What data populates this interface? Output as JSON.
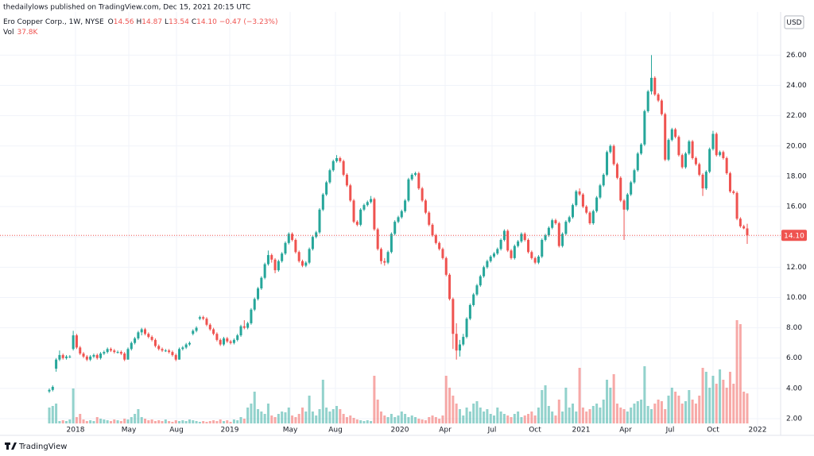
{
  "chart_data": {
    "type": "candlestick",
    "publisher_line": "thedailylows published on TradingView.com, Dec 15, 2021 20:15 UTC",
    "symbol": "Ero Copper Corp., 1W, NYSE",
    "ohlc_legend": [
      {
        "label": "O",
        "value": "14.56"
      },
      {
        "label": "H",
        "value": "14.87"
      },
      {
        "label": "L",
        "value": "13.54"
      },
      {
        "label": "C",
        "value": "14.10"
      }
    ],
    "change": "−0.47 (−3.23%)",
    "volume_legend": {
      "label": "Vol",
      "value": "37.8K"
    },
    "currency": "USD",
    "brand": "TradingView",
    "last_price": {
      "value": 14.1,
      "label": "14.10"
    },
    "up_color": "#26a69a",
    "down_color": "#ef5350",
    "grid": true,
    "ylim": [
      1.32,
      27.8
    ],
    "yticks": [
      {
        "value": 2,
        "label": "2.00"
      },
      {
        "value": 4,
        "label": "4.00"
      },
      {
        "value": 6,
        "label": "6.00"
      },
      {
        "value": 8,
        "label": "8.00"
      },
      {
        "value": 10,
        "label": "10.00"
      },
      {
        "value": 12,
        "label": "12.00"
      },
      {
        "value": 14,
        "label": "14.00"
      },
      {
        "value": 16,
        "label": "16.00"
      },
      {
        "value": 18,
        "label": "18.00"
      },
      {
        "value": 20,
        "label": "20.00"
      },
      {
        "value": 22,
        "label": "22.00"
      },
      {
        "value": 24,
        "label": "24.00"
      },
      {
        "value": 26,
        "label": "26.00"
      }
    ],
    "xlabels": [
      "2018",
      "May",
      "Aug",
      "2019",
      "May",
      "Aug",
      "2020",
      "Apr",
      "Jul",
      "Oct",
      "2021",
      "Apr",
      "Jul",
      "Oct",
      "2022"
    ],
    "candles": [
      [
        3.8,
        4.0,
        3.7,
        3.9
      ],
      [
        3.9,
        4.2,
        3.8,
        4.1
      ],
      [
        5.3,
        6.0,
        5.1,
        5.9
      ],
      [
        5.9,
        6.5,
        5.8,
        6.2
      ],
      [
        6.2,
        6.3,
        5.9,
        6.0
      ],
      [
        6.0,
        6.2,
        5.9,
        6.1
      ],
      [
        6.1,
        6.2,
        6.0,
        6.1
      ],
      [
        6.6,
        7.8,
        6.5,
        7.5
      ],
      [
        7.5,
        7.6,
        6.6,
        6.7
      ],
      [
        6.7,
        6.8,
        6.2,
        6.3
      ],
      [
        6.3,
        6.4,
        6.0,
        6.1
      ],
      [
        6.1,
        6.2,
        5.8,
        5.9
      ],
      [
        5.9,
        6.2,
        5.8,
        6.1
      ],
      [
        6.1,
        6.3,
        6.0,
        6.2
      ],
      [
        6.2,
        6.3,
        5.9,
        6.0
      ],
      [
        6.0,
        6.4,
        5.9,
        6.3
      ],
      [
        6.3,
        6.5,
        6.2,
        6.4
      ],
      [
        6.4,
        6.7,
        6.3,
        6.6
      ],
      [
        6.6,
        6.7,
        6.4,
        6.5
      ],
      [
        6.5,
        6.6,
        6.3,
        6.4
      ],
      [
        6.4,
        6.5,
        6.3,
        6.4
      ],
      [
        6.4,
        6.5,
        6.2,
        6.3
      ],
      [
        6.3,
        6.4,
        5.8,
        5.9
      ],
      [
        5.9,
        6.7,
        5.9,
        6.6
      ],
      [
        6.6,
        7.1,
        6.5,
        7.0
      ],
      [
        7.0,
        7.4,
        6.9,
        7.3
      ],
      [
        7.3,
        7.8,
        7.2,
        7.7
      ],
      [
        7.7,
        8.0,
        7.5,
        7.9
      ],
      [
        7.9,
        8.0,
        7.5,
        7.6
      ],
      [
        7.6,
        7.7,
        7.3,
        7.4
      ],
      [
        7.4,
        7.5,
        7.1,
        7.2
      ],
      [
        7.2,
        7.3,
        6.7,
        6.8
      ],
      [
        6.8,
        6.9,
        6.5,
        6.6
      ],
      [
        6.6,
        6.7,
        6.4,
        6.5
      ],
      [
        6.5,
        6.6,
        6.4,
        6.5
      ],
      [
        6.5,
        6.6,
        6.3,
        6.4
      ],
      [
        6.4,
        6.5,
        6.1,
        6.2
      ],
      [
        6.2,
        6.3,
        5.8,
        5.9
      ],
      [
        5.9,
        6.7,
        5.9,
        6.6
      ],
      [
        6.6,
        6.8,
        6.5,
        6.7
      ],
      [
        6.7,
        7.0,
        6.6,
        6.9
      ],
      [
        6.9,
        7.1,
        6.8,
        7.0
      ],
      [
        7.6,
        7.9,
        7.5,
        7.8
      ],
      [
        7.8,
        8.1,
        7.7,
        8.0
      ],
      [
        8.6,
        8.8,
        8.5,
        8.7
      ],
      [
        8.7,
        8.8,
        8.5,
        8.6
      ],
      [
        8.6,
        8.7,
        8.1,
        8.2
      ],
      [
        8.2,
        8.3,
        7.8,
        7.9
      ],
      [
        7.9,
        8.0,
        7.5,
        7.6
      ],
      [
        7.6,
        7.7,
        7.1,
        7.2
      ],
      [
        7.2,
        7.3,
        6.8,
        6.9
      ],
      [
        6.9,
        7.4,
        6.8,
        7.3
      ],
      [
        7.3,
        7.4,
        7.0,
        7.1
      ],
      [
        7.1,
        7.2,
        6.9,
        7.0
      ],
      [
        7.0,
        7.3,
        6.9,
        7.2
      ],
      [
        7.2,
        7.6,
        7.1,
        7.5
      ],
      [
        7.5,
        8.2,
        7.4,
        8.1
      ],
      [
        8.1,
        8.5,
        7.9,
        8.0
      ],
      [
        8.0,
        8.4,
        7.9,
        8.3
      ],
      [
        8.3,
        9.3,
        8.2,
        9.2
      ],
      [
        9.2,
        10.0,
        9.1,
        9.9
      ],
      [
        9.9,
        10.7,
        9.8,
        10.6
      ],
      [
        10.6,
        11.4,
        10.5,
        11.3
      ],
      [
        11.3,
        12.3,
        11.2,
        12.2
      ],
      [
        12.2,
        13.1,
        12.1,
        12.8
      ],
      [
        12.8,
        12.9,
        12.3,
        12.5
      ],
      [
        12.5,
        12.6,
        11.6,
        11.8
      ],
      [
        11.8,
        12.5,
        11.7,
        12.4
      ],
      [
        12.4,
        13.0,
        12.3,
        12.9
      ],
      [
        12.9,
        13.7,
        12.8,
        13.6
      ],
      [
        13.6,
        14.3,
        13.5,
        14.2
      ],
      [
        14.2,
        14.3,
        13.7,
        13.8
      ],
      [
        13.8,
        13.9,
        12.9,
        13.0
      ],
      [
        13.0,
        13.1,
        12.3,
        12.4
      ],
      [
        12.4,
        12.5,
        12.0,
        12.1
      ],
      [
        12.1,
        12.4,
        12.0,
        12.3
      ],
      [
        12.3,
        13.3,
        12.2,
        13.2
      ],
      [
        13.2,
        14.1,
        13.1,
        14.0
      ],
      [
        14.0,
        14.4,
        13.9,
        14.3
      ],
      [
        14.3,
        15.9,
        14.2,
        15.8
      ],
      [
        15.8,
        16.9,
        15.7,
        16.8
      ],
      [
        16.8,
        17.7,
        16.7,
        17.6
      ],
      [
        17.6,
        18.5,
        17.5,
        18.4
      ],
      [
        18.4,
        19.1,
        18.3,
        19.0
      ],
      [
        19.0,
        19.4,
        18.9,
        19.2
      ],
      [
        19.2,
        19.3,
        18.9,
        19.0
      ],
      [
        19.0,
        19.1,
        18.0,
        18.1
      ],
      [
        18.1,
        18.2,
        17.3,
        17.4
      ],
      [
        17.4,
        17.5,
        16.3,
        16.4
      ],
      [
        16.4,
        16.5,
        14.9,
        15.0
      ],
      [
        15.0,
        15.1,
        14.7,
        14.8
      ],
      [
        14.8,
        15.9,
        14.7,
        15.8
      ],
      [
        15.8,
        16.2,
        15.7,
        16.1
      ],
      [
        16.1,
        16.4,
        16.0,
        16.3
      ],
      [
        16.3,
        16.7,
        16.2,
        16.5
      ],
      [
        16.5,
        16.6,
        14.4,
        14.5
      ],
      [
        14.5,
        14.6,
        13.1,
        13.2
      ],
      [
        13.2,
        13.3,
        12.2,
        12.4
      ],
      [
        12.4,
        12.6,
        12.1,
        12.3
      ],
      [
        12.3,
        13.1,
        12.2,
        13.0
      ],
      [
        13.0,
        14.3,
        12.9,
        14.2
      ],
      [
        14.2,
        15.1,
        14.1,
        15.0
      ],
      [
        15.0,
        15.4,
        14.9,
        15.3
      ],
      [
        15.3,
        15.8,
        15.2,
        15.7
      ],
      [
        15.7,
        16.5,
        15.6,
        16.4
      ],
      [
        16.4,
        17.9,
        16.3,
        17.8
      ],
      [
        17.8,
        18.2,
        17.7,
        18.1
      ],
      [
        18.1,
        18.3,
        18.0,
        18.2
      ],
      [
        18.2,
        18.3,
        17.1,
        17.2
      ],
      [
        17.2,
        17.3,
        16.3,
        16.4
      ],
      [
        16.4,
        16.5,
        15.5,
        15.6
      ],
      [
        15.6,
        15.7,
        14.7,
        14.8
      ],
      [
        14.8,
        14.9,
        14.0,
        14.1
      ],
      [
        14.1,
        14.2,
        13.5,
        13.6
      ],
      [
        13.6,
        13.7,
        13.1,
        13.2
      ],
      [
        13.2,
        13.3,
        12.5,
        12.6
      ],
      [
        12.6,
        12.7,
        11.4,
        11.5
      ],
      [
        11.5,
        11.6,
        9.8,
        9.9
      ],
      [
        9.9,
        10.0,
        6.6,
        7.6
      ],
      [
        7.6,
        8.3,
        5.9,
        6.5
      ],
      [
        6.5,
        7.2,
        6.1,
        6.9
      ],
      [
        6.9,
        7.6,
        6.8,
        7.4
      ],
      [
        7.4,
        8.7,
        7.3,
        8.6
      ],
      [
        8.6,
        9.6,
        8.5,
        9.5
      ],
      [
        9.5,
        10.3,
        9.4,
        10.2
      ],
      [
        10.2,
        10.9,
        10.1,
        10.8
      ],
      [
        10.8,
        11.5,
        10.7,
        11.4
      ],
      [
        11.4,
        12.1,
        11.3,
        12.0
      ],
      [
        12.0,
        12.5,
        11.9,
        12.4
      ],
      [
        12.4,
        12.8,
        12.3,
        12.7
      ],
      [
        12.7,
        13.0,
        12.6,
        12.9
      ],
      [
        12.9,
        13.3,
        12.8,
        13.2
      ],
      [
        13.2,
        13.9,
        13.1,
        13.8
      ],
      [
        13.8,
        14.5,
        13.7,
        14.4
      ],
      [
        14.4,
        14.5,
        13.0,
        13.1
      ],
      [
        13.1,
        13.2,
        12.5,
        12.6
      ],
      [
        12.6,
        13.5,
        12.5,
        13.4
      ],
      [
        13.4,
        13.8,
        13.3,
        13.7
      ],
      [
        13.7,
        14.3,
        13.6,
        14.2
      ],
      [
        14.2,
        14.3,
        13.7,
        13.8
      ],
      [
        13.8,
        13.9,
        12.9,
        13.0
      ],
      [
        13.0,
        13.1,
        12.5,
        12.6
      ],
      [
        12.6,
        12.7,
        12.2,
        12.3
      ],
      [
        12.3,
        12.8,
        12.2,
        12.7
      ],
      [
        12.7,
        13.9,
        12.6,
        13.8
      ],
      [
        13.8,
        14.2,
        13.7,
        14.1
      ],
      [
        14.1,
        14.7,
        14.0,
        14.6
      ],
      [
        14.6,
        15.2,
        14.5,
        15.1
      ],
      [
        15.1,
        15.2,
        14.8,
        14.9
      ],
      [
        14.9,
        15.0,
        13.3,
        13.4
      ],
      [
        13.4,
        14.3,
        13.3,
        14.2
      ],
      [
        14.2,
        15.1,
        14.1,
        15.0
      ],
      [
        15.0,
        15.4,
        14.9,
        15.3
      ],
      [
        15.3,
        16.2,
        15.2,
        16.1
      ],
      [
        16.1,
        17.1,
        16.0,
        17.0
      ],
      [
        17.0,
        17.2,
        16.7,
        16.8
      ],
      [
        16.8,
        16.9,
        15.9,
        16.0
      ],
      [
        16.0,
        16.1,
        15.5,
        15.6
      ],
      [
        15.6,
        15.7,
        14.8,
        14.9
      ],
      [
        14.9,
        15.8,
        14.8,
        15.7
      ],
      [
        15.7,
        16.7,
        15.6,
        16.6
      ],
      [
        16.6,
        17.5,
        16.5,
        17.4
      ],
      [
        17.4,
        18.2,
        17.3,
        18.1
      ],
      [
        18.1,
        19.7,
        18.0,
        19.6
      ],
      [
        19.6,
        20.1,
        19.5,
        20.0
      ],
      [
        20.0,
        20.1,
        18.7,
        18.8
      ],
      [
        18.8,
        18.9,
        17.8,
        17.9
      ],
      [
        17.9,
        18.0,
        16.3,
        16.4
      ],
      [
        16.4,
        16.5,
        13.8,
        15.8
      ],
      [
        15.8,
        16.9,
        15.7,
        16.8
      ],
      [
        16.8,
        17.7,
        16.7,
        17.6
      ],
      [
        17.6,
        18.5,
        17.5,
        18.4
      ],
      [
        18.4,
        19.6,
        18.3,
        19.5
      ],
      [
        19.5,
        20.2,
        19.4,
        20.1
      ],
      [
        20.1,
        22.4,
        20.0,
        22.3
      ],
      [
        22.3,
        23.7,
        22.2,
        23.6
      ],
      [
        23.6,
        26.0,
        23.4,
        24.5
      ],
      [
        24.5,
        24.6,
        23.3,
        23.4
      ],
      [
        23.4,
        23.5,
        22.9,
        23.0
      ],
      [
        23.0,
        23.1,
        22.0,
        22.1
      ],
      [
        22.1,
        22.2,
        19.0,
        19.1
      ],
      [
        19.1,
        20.5,
        19.0,
        20.4
      ],
      [
        20.4,
        21.2,
        20.3,
        21.1
      ],
      [
        21.1,
        21.2,
        20.5,
        20.6
      ],
      [
        20.6,
        20.7,
        19.3,
        19.4
      ],
      [
        19.4,
        19.5,
        18.5,
        18.6
      ],
      [
        18.6,
        19.6,
        18.5,
        19.5
      ],
      [
        19.5,
        20.4,
        19.4,
        20.3
      ],
      [
        20.3,
        20.4,
        19.1,
        19.2
      ],
      [
        19.2,
        19.3,
        18.7,
        18.8
      ],
      [
        18.8,
        18.9,
        18.0,
        18.1
      ],
      [
        18.1,
        18.2,
        16.7,
        17.2
      ],
      [
        17.2,
        18.4,
        17.1,
        18.3
      ],
      [
        18.3,
        19.9,
        18.2,
        19.8
      ],
      [
        19.8,
        21.0,
        19.7,
        20.8
      ],
      [
        20.8,
        20.9,
        19.3,
        19.4
      ],
      [
        19.4,
        19.7,
        19.3,
        19.6
      ],
      [
        19.6,
        19.7,
        19.1,
        19.2
      ],
      [
        19.2,
        19.3,
        18.1,
        18.2
      ],
      [
        18.2,
        18.3,
        16.9,
        17.0
      ],
      [
        17.0,
        17.1,
        16.8,
        16.9
      ],
      [
        16.9,
        17.0,
        15.1,
        15.2
      ],
      [
        15.2,
        15.3,
        14.6,
        14.7
      ],
      [
        14.7,
        14.8,
        14.5,
        14.56
      ],
      [
        14.56,
        14.87,
        13.54,
        14.1
      ]
    ],
    "volume": [
      20,
      22,
      25,
      3,
      4,
      3,
      5,
      44,
      8,
      12,
      5,
      3,
      4,
      3,
      8,
      6,
      5,
      4,
      3,
      5,
      4,
      3,
      6,
      5,
      8,
      12,
      18,
      8,
      6,
      4,
      5,
      3,
      4,
      3,
      5,
      3,
      2,
      4,
      3,
      4,
      3,
      5,
      4,
      3,
      2,
      3,
      2,
      3,
      4,
      3,
      5,
      3,
      4,
      2,
      5,
      4,
      8,
      6,
      20,
      25,
      40,
      18,
      15,
      12,
      25,
      10,
      8,
      12,
      15,
      14,
      20,
      10,
      8,
      12,
      20,
      15,
      35,
      15,
      10,
      18,
      55,
      20,
      15,
      18,
      22,
      18,
      12,
      8,
      10,
      7,
      5,
      4,
      3,
      4,
      3,
      60,
      30,
      15,
      10,
      8,
      12,
      8,
      10,
      15,
      12,
      8,
      10,
      8,
      6,
      5,
      4,
      8,
      10,
      8,
      6,
      10,
      60,
      45,
      35,
      25,
      18,
      10,
      20,
      15,
      25,
      28,
      20,
      15,
      18,
      12,
      10,
      20,
      15,
      12,
      10,
      8,
      12,
      15,
      8,
      10,
      12,
      15,
      10,
      20,
      42,
      48,
      22,
      15,
      10,
      30,
      15,
      45,
      20,
      25,
      15,
      70,
      20,
      15,
      18,
      22,
      25,
      20,
      30,
      55,
      45,
      62,
      25,
      20,
      18,
      15,
      20,
      25,
      28,
      30,
      72,
      22,
      18,
      25,
      30,
      28,
      18,
      35,
      45,
      40,
      35,
      25,
      28,
      42,
      30,
      25,
      35,
      70,
      65,
      45,
      60,
      50,
      68,
      55,
      45,
      65,
      50,
      130,
      125,
      40,
      37.8
    ]
  }
}
